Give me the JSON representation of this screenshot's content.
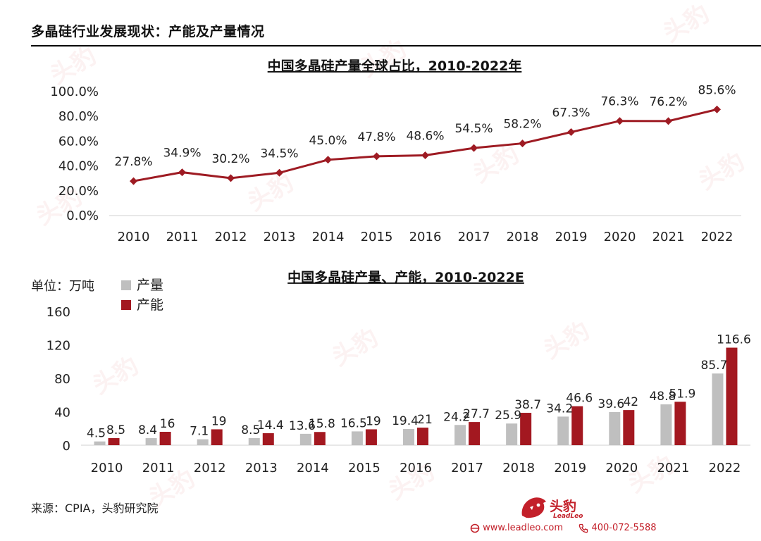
{
  "page": {
    "title": "多晶硅行业发展现状：产能及产量情况",
    "source": "来源：CPIA，头豹研究院",
    "logo_name": "头豹",
    "logo_sub": "LeadLeo",
    "website": "www.leadleo.com",
    "phone": "400-072-5588",
    "accent_color": "#9e1b23"
  },
  "chart_data": [
    {
      "type": "line",
      "title": "中国多晶硅产量全球占比，2010-2022年",
      "categories": [
        "2010",
        "2011",
        "2012",
        "2013",
        "2014",
        "2015",
        "2016",
        "2017",
        "2018",
        "2019",
        "2020",
        "2021",
        "2022"
      ],
      "series": [
        {
          "values": [
            27.8,
            34.9,
            30.2,
            34.5,
            45.0,
            47.8,
            48.6,
            54.5,
            58.2,
            67.3,
            76.3,
            76.2,
            85.6
          ],
          "color": "#9e1b23"
        }
      ],
      "data_labels": [
        "27.8%",
        "34.9%",
        "30.2%",
        "34.5%",
        "45.0%",
        "47.8%",
        "48.6%",
        "54.5%",
        "58.2%",
        "67.3%",
        "76.3%",
        "76.2%",
        "85.6%"
      ],
      "ylim": [
        0,
        100
      ],
      "yticks": [
        "0.0%",
        "20.0%",
        "40.0%",
        "60.0%",
        "80.0%",
        "100.0%"
      ],
      "marker": "diamond",
      "grid": false
    },
    {
      "type": "bar",
      "title": "中国多晶硅产量、产能，2010-2022E",
      "unit": "单位：万吨",
      "categories": [
        "2010",
        "2011",
        "2012",
        "2013",
        "2014",
        "2015",
        "2016",
        "2017",
        "2018",
        "2019",
        "2020",
        "2021",
        "2022"
      ],
      "series": [
        {
          "name": "产量",
          "color": "#bfbfbf",
          "values": [
            4.5,
            8.4,
            7.1,
            8.5,
            13.6,
            16.5,
            19.4,
            24.2,
            25.9,
            34.2,
            39.6,
            48.8,
            85.7
          ]
        },
        {
          "name": "产能",
          "color": "#a31820",
          "values": [
            8.5,
            16,
            19,
            14.4,
            15.8,
            19,
            21,
            27.7,
            38.7,
            46.6,
            42,
            51.9,
            116.6
          ]
        }
      ],
      "ylim": [
        0,
        160
      ],
      "yticks": [
        "0",
        "40",
        "80",
        "120",
        "160"
      ],
      "legend": "top-left",
      "grid": false
    }
  ]
}
